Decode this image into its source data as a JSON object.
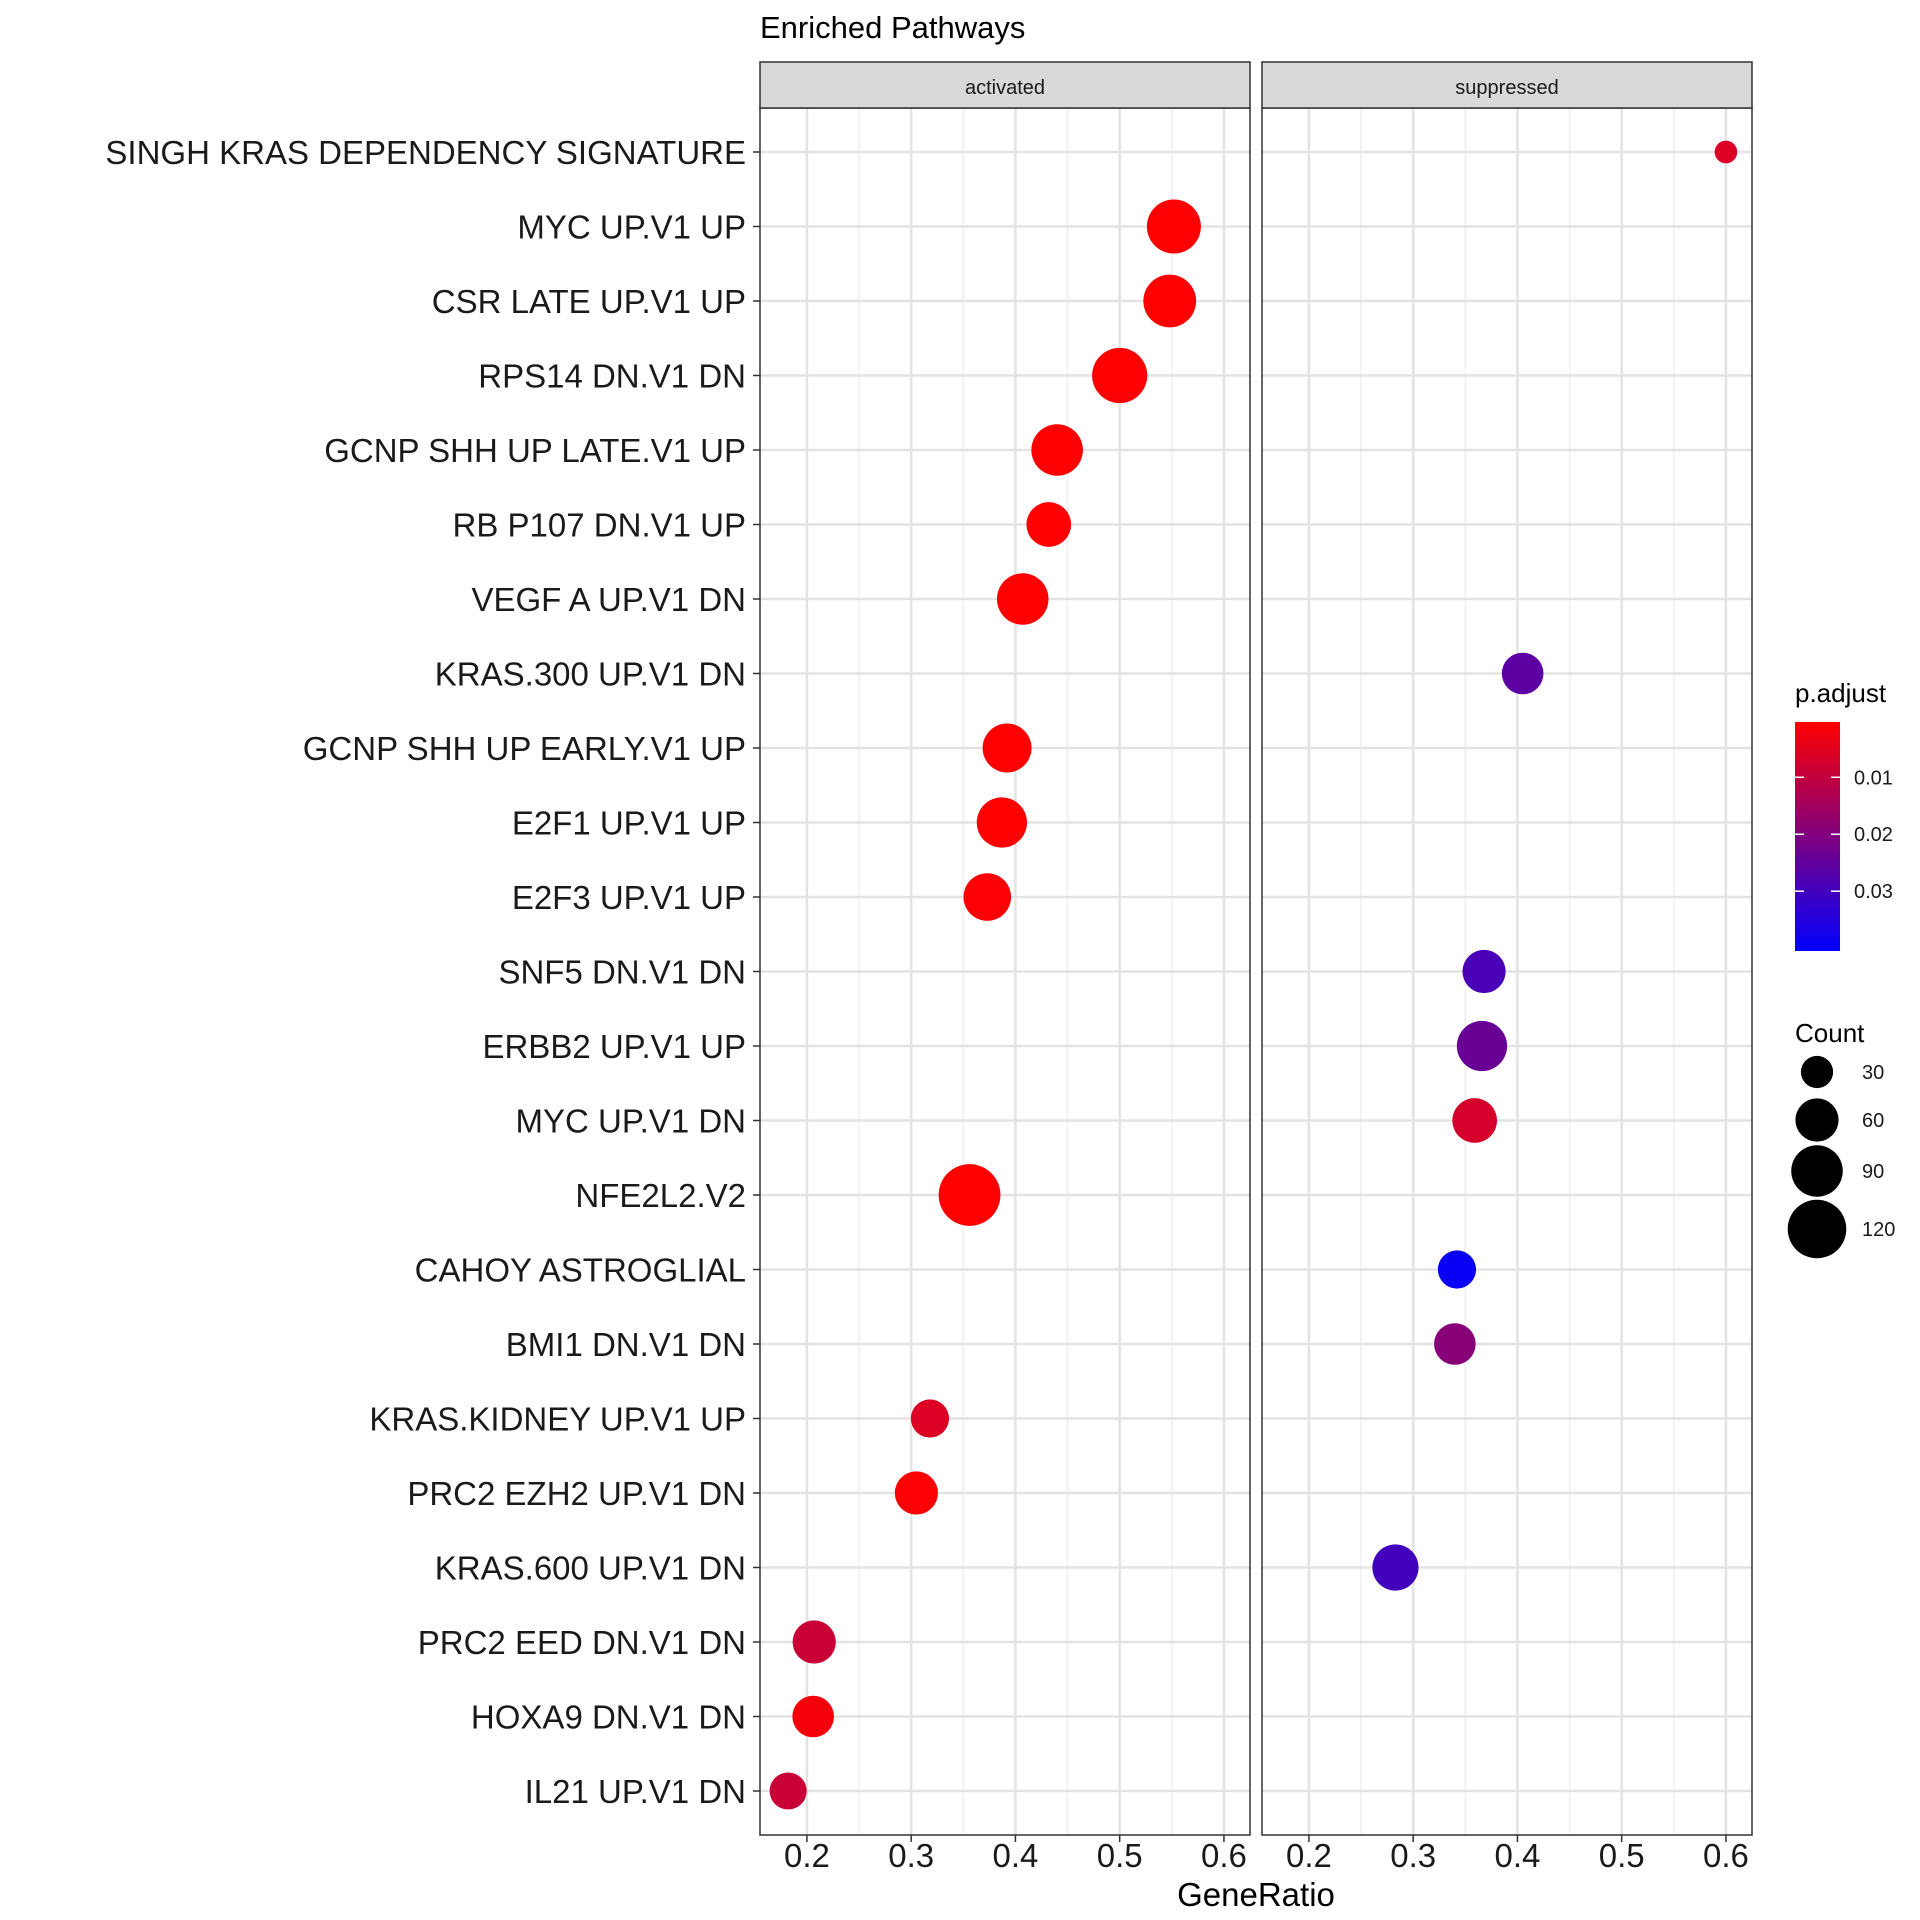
{
  "chart_data": {
    "type": "scatter",
    "title": "Enriched Pathways",
    "xlabel": "GeneRatio",
    "ylabel": "",
    "xlim": [
      0.155,
      0.625
    ],
    "x_ticks": [
      "0.2",
      "0.3",
      "0.4",
      "0.5",
      "0.6"
    ],
    "grid": true,
    "facets": [
      "activated",
      "suppressed"
    ],
    "categories": [
      "SINGH KRAS DEPENDENCY SIGNATURE",
      "MYC UP.V1 UP",
      "CSR LATE UP.V1 UP",
      "RPS14 DN.V1 DN",
      "GCNP SHH UP LATE.V1 UP",
      "RB P107 DN.V1 UP",
      "VEGF A UP.V1 DN",
      "KRAS.300 UP.V1 DN",
      "GCNP SHH UP EARLY.V1 UP",
      "E2F1 UP.V1 UP",
      "E2F3 UP.V1 UP",
      "SNF5 DN.V1 DN",
      "ERBB2 UP.V1 UP",
      "MYC UP.V1 DN",
      "NFE2L2.V2",
      "CAHOY ASTROGLIAL",
      "BMI1 DN.V1 DN",
      "KRAS.KIDNEY UP.V1 UP",
      "PRC2 EZH2 UP.V1 DN",
      "KRAS.600 UP.V1 DN",
      "PRC2 EED DN.V1 DN",
      "HOXA9 DN.V1 DN",
      "IL21 UP.V1 DN"
    ],
    "points": [
      {
        "facet": "suppressed",
        "category": "SINGH KRAS DEPENDENCY SIGNATURE",
        "x": 0.6,
        "count": 12,
        "p_adjust": 0.006
      },
      {
        "facet": "activated",
        "category": "MYC UP.V1 UP",
        "x": 0.552,
        "count": 100,
        "p_adjust": 0.0005
      },
      {
        "facet": "activated",
        "category": "CSR LATE UP.V1 UP",
        "x": 0.548,
        "count": 95,
        "p_adjust": 0.0005
      },
      {
        "facet": "activated",
        "category": "RPS14 DN.V1 DN",
        "x": 0.5,
        "count": 105,
        "p_adjust": 0.0005
      },
      {
        "facet": "activated",
        "category": "GCNP SHH UP LATE.V1 UP",
        "x": 0.44,
        "count": 90,
        "p_adjust": 0.0005
      },
      {
        "facet": "activated",
        "category": "RB P107 DN.V1 UP",
        "x": 0.432,
        "count": 65,
        "p_adjust": 0.0005
      },
      {
        "facet": "activated",
        "category": "VEGF A UP.V1 DN",
        "x": 0.407,
        "count": 90,
        "p_adjust": 0.0005
      },
      {
        "facet": "suppressed",
        "category": "KRAS.300 UP.V1 DN",
        "x": 0.405,
        "count": 55,
        "p_adjust": 0.026
      },
      {
        "facet": "activated",
        "category": "GCNP SHH UP EARLY.V1 UP",
        "x": 0.392,
        "count": 80,
        "p_adjust": 0.0005
      },
      {
        "facet": "activated",
        "category": "E2F1 UP.V1 UP",
        "x": 0.387,
        "count": 85,
        "p_adjust": 0.0005
      },
      {
        "facet": "activated",
        "category": "E2F3 UP.V1 UP",
        "x": 0.373,
        "count": 75,
        "p_adjust": 0.001
      },
      {
        "facet": "suppressed",
        "category": "SNF5 DN.V1 DN",
        "x": 0.368,
        "count": 60,
        "p_adjust": 0.029
      },
      {
        "facet": "suppressed",
        "category": "ERBB2 UP.V1 UP",
        "x": 0.366,
        "count": 85,
        "p_adjust": 0.024
      },
      {
        "facet": "suppressed",
        "category": "MYC UP.V1 DN",
        "x": 0.359,
        "count": 65,
        "p_adjust": 0.007
      },
      {
        "facet": "activated",
        "category": "NFE2L2.V2",
        "x": 0.356,
        "count": 135,
        "p_adjust": 0.0005
      },
      {
        "facet": "suppressed",
        "category": "CAHOY ASTROGLIAL",
        "x": 0.342,
        "count": 45,
        "p_adjust": 0.039
      },
      {
        "facet": "suppressed",
        "category": "BMI1 DN.V1 DN",
        "x": 0.34,
        "count": 55,
        "p_adjust": 0.019
      },
      {
        "facet": "activated",
        "category": "KRAS.KIDNEY UP.V1 UP",
        "x": 0.318,
        "count": 45,
        "p_adjust": 0.006
      },
      {
        "facet": "activated",
        "category": "PRC2 EZH2 UP.V1 DN",
        "x": 0.305,
        "count": 60,
        "p_adjust": 0.001
      },
      {
        "facet": "suppressed",
        "category": "KRAS.600 UP.V1 DN",
        "x": 0.283,
        "count": 70,
        "p_adjust": 0.03
      },
      {
        "facet": "activated",
        "category": "PRC2 EED DN.V1 DN",
        "x": 0.207,
        "count": 60,
        "p_adjust": 0.009
      },
      {
        "facet": "activated",
        "category": "HOXA9 DN.V1 DN",
        "x": 0.206,
        "count": 55,
        "p_adjust": 0.002
      },
      {
        "facet": "activated",
        "category": "IL21 UP.V1 DN",
        "x": 0.182,
        "count": 42,
        "p_adjust": 0.009
      }
    ],
    "legend_color": {
      "title": "p.adjust",
      "ticks": [
        "0.01",
        "0.02",
        "0.03"
      ],
      "tick_values": [
        0.01,
        0.02,
        0.03
      ],
      "domain": [
        0.0003,
        0.0405
      ],
      "high_color": "#0000ff",
      "low_color": "#ff0000",
      "placement": "right"
    },
    "legend_size": {
      "title": "Count",
      "labels": [
        "30",
        "60",
        "90",
        "120"
      ],
      "values": [
        30,
        60,
        90,
        120
      ],
      "placement": "right"
    }
  }
}
